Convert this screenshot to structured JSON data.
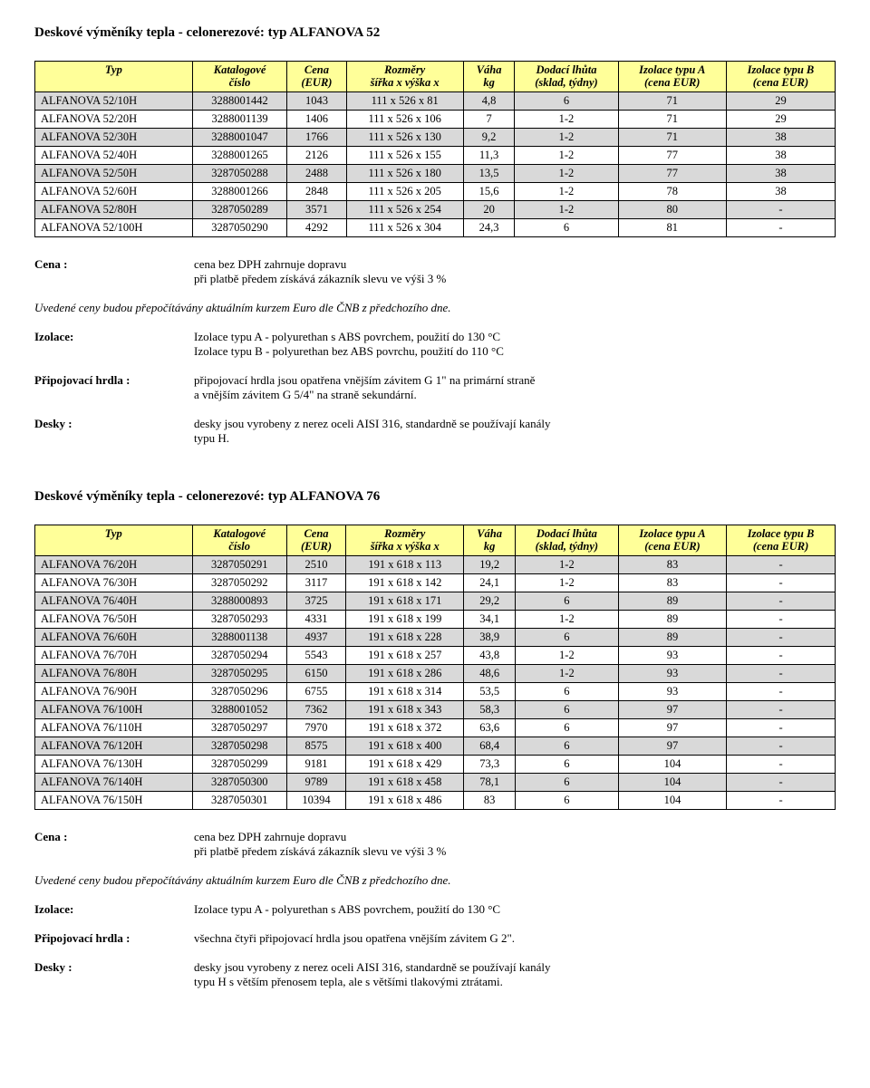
{
  "section1": {
    "title": "Deskové výměníky tepla - celonerezové: typ ALFANOVA 52",
    "columns": [
      {
        "l1": "Typ",
        "l2": ""
      },
      {
        "l1": "Katalogové",
        "l2": "číslo"
      },
      {
        "l1": "Cena",
        "l2": "(EUR)"
      },
      {
        "l1": "Rozměry",
        "l2": "šířka x výška x"
      },
      {
        "l1": "Váha",
        "l2": "kg"
      },
      {
        "l1": "Dodací lhůta",
        "l2": "(sklad, týdny)"
      },
      {
        "l1": "Izolace typu A",
        "l2": "(cena EUR)"
      },
      {
        "l1": "Izolace typu B",
        "l2": "(cena EUR)"
      }
    ],
    "rows": [
      {
        "shade": true,
        "c": [
          "ALFANOVA 52/10H",
          "3288001442",
          "1043",
          "111 x 526 x 81",
          "4,8",
          "6",
          "71",
          "29"
        ]
      },
      {
        "shade": false,
        "c": [
          "ALFANOVA 52/20H",
          "3288001139",
          "1406",
          "111 x 526 x 106",
          "7",
          "1-2",
          "71",
          "29"
        ]
      },
      {
        "shade": true,
        "c": [
          "ALFANOVA 52/30H",
          "3288001047",
          "1766",
          "111 x 526 x 130",
          "9,2",
          "1-2",
          "71",
          "38"
        ]
      },
      {
        "shade": false,
        "c": [
          "ALFANOVA 52/40H",
          "3288001265",
          "2126",
          "111 x 526 x 155",
          "11,3",
          "1-2",
          "77",
          "38"
        ]
      },
      {
        "shade": true,
        "c": [
          "ALFANOVA 52/50H",
          "3287050288",
          "2488",
          "111 x 526 x 180",
          "13,5",
          "1-2",
          "77",
          "38"
        ]
      },
      {
        "shade": false,
        "c": [
          "ALFANOVA 52/60H",
          "3288001266",
          "2848",
          "111 x 526 x 205",
          "15,6",
          "1-2",
          "78",
          "38"
        ]
      },
      {
        "shade": true,
        "c": [
          "ALFANOVA 52/80H",
          "3287050289",
          "3571",
          "111 x 526 x 254",
          "20",
          "1-2",
          "80",
          "-"
        ]
      },
      {
        "shade": false,
        "c": [
          "ALFANOVA 52/100H",
          "3287050290",
          "4292",
          "111 x 526 x 304",
          "24,3",
          "6",
          "81",
          "-"
        ]
      }
    ],
    "defs": {
      "cena_label": "Cena :",
      "cena_l1": "cena bez DPH zahrnuje dopravu",
      "cena_l2": "při platbě předem získává zákazník slevu ve výši 3 %",
      "cena_note": "Uvedené ceny budou přepočítávány aktuálním kurzem Euro dle ČNB z předchozího dne.",
      "izolace_label": "Izolace:",
      "izolace_l1": "Izolace typu A - polyurethan s ABS povrchem, použití do 130 °C",
      "izolace_l2": "Izolace typu B - polyurethan bez ABS povrchu, použití do 110 °C",
      "hrdla_label": "Připojovací hrdla :",
      "hrdla_l1": "připojovací hrdla jsou opatřena vnějším závitem G 1\" na primární straně",
      "hrdla_l2": "a vnějším závitem G 5/4\" na straně sekundární.",
      "desky_label": "Desky :",
      "desky_l1": "desky jsou vyrobeny z nerez oceli AISI 316, standardně se používají kanály",
      "desky_l2": "typu H."
    }
  },
  "section2": {
    "title": "Deskové výměníky tepla - celonerezové: typ ALFANOVA 76",
    "columns": [
      {
        "l1": "Typ",
        "l2": ""
      },
      {
        "l1": "Katalogové",
        "l2": "číslo"
      },
      {
        "l1": "Cena",
        "l2": "(EUR)"
      },
      {
        "l1": "Rozměry",
        "l2": "šířka x výška x"
      },
      {
        "l1": "Váha",
        "l2": "kg"
      },
      {
        "l1": "Dodací lhůta",
        "l2": "(sklad, týdny)"
      },
      {
        "l1": "Izolace typu A",
        "l2": "(cena EUR)"
      },
      {
        "l1": "Izolace typu B",
        "l2": "(cena EUR)"
      }
    ],
    "rows": [
      {
        "shade": true,
        "c": [
          "ALFANOVA 76/20H",
          "3287050291",
          "2510",
          "191 x 618 x 113",
          "19,2",
          "1-2",
          "83",
          "-"
        ]
      },
      {
        "shade": false,
        "c": [
          "ALFANOVA 76/30H",
          "3287050292",
          "3117",
          "191 x 618 x 142",
          "24,1",
          "1-2",
          "83",
          "-"
        ]
      },
      {
        "shade": true,
        "c": [
          "ALFANOVA 76/40H",
          "3288000893",
          "3725",
          "191 x 618 x 171",
          "29,2",
          "6",
          "89",
          "-"
        ]
      },
      {
        "shade": false,
        "c": [
          "ALFANOVA 76/50H",
          "3287050293",
          "4331",
          "191 x 618 x 199",
          "34,1",
          "1-2",
          "89",
          "-"
        ]
      },
      {
        "shade": true,
        "c": [
          "ALFANOVA 76/60H",
          "3288001138",
          "4937",
          "191 x 618 x 228",
          "38,9",
          "6",
          "89",
          "-"
        ]
      },
      {
        "shade": false,
        "c": [
          "ALFANOVA 76/70H",
          "3287050294",
          "5543",
          "191 x 618 x 257",
          "43,8",
          "1-2",
          "93",
          "-"
        ]
      },
      {
        "shade": true,
        "c": [
          "ALFANOVA 76/80H",
          "3287050295",
          "6150",
          "191 x 618 x 286",
          "48,6",
          "1-2",
          "93",
          "-"
        ]
      },
      {
        "shade": false,
        "c": [
          "ALFANOVA 76/90H",
          "3287050296",
          "6755",
          "191 x 618 x 314",
          "53,5",
          "6",
          "93",
          "-"
        ]
      },
      {
        "shade": true,
        "c": [
          "ALFANOVA 76/100H",
          "3288001052",
          "7362",
          "191 x 618 x 343",
          "58,3",
          "6",
          "97",
          "-"
        ]
      },
      {
        "shade": false,
        "c": [
          "ALFANOVA 76/110H",
          "3287050297",
          "7970",
          "191 x 618 x 372",
          "63,6",
          "6",
          "97",
          "-"
        ]
      },
      {
        "shade": true,
        "c": [
          "ALFANOVA 76/120H",
          "3287050298",
          "8575",
          "191 x 618 x 400",
          "68,4",
          "6",
          "97",
          "-"
        ]
      },
      {
        "shade": false,
        "c": [
          "ALFANOVA 76/130H",
          "3287050299",
          "9181",
          "191 x 618 x 429",
          "73,3",
          "6",
          "104",
          "-"
        ]
      },
      {
        "shade": true,
        "c": [
          "ALFANOVA 76/140H",
          "3287050300",
          "9789",
          "191 x 618 x 458",
          "78,1",
          "6",
          "104",
          "-"
        ]
      },
      {
        "shade": false,
        "c": [
          "ALFANOVA 76/150H",
          "3287050301",
          "10394",
          "191 x 618 x 486",
          "83",
          "6",
          "104",
          "-"
        ]
      }
    ],
    "defs": {
      "cena_label": "Cena :",
      "cena_l1": "cena bez DPH zahrnuje dopravu",
      "cena_l2": "při platbě předem získává zákazník slevu ve výši 3 %",
      "cena_note": "Uvedené ceny budou přepočítávány aktuálním kurzem Euro dle ČNB z předchozího dne.",
      "izolace_label": "Izolace:",
      "izolace_l1": "Izolace typu A - polyurethan s ABS povrchem, použití do 130 °C",
      "hrdla_label": "Připojovací hrdla :",
      "hrdla_l1": "všechna čtyři připojovací hrdla jsou opatřena vnějším závitem G 2\".",
      "desky_label": "Desky :",
      "desky_l1": "desky jsou vyrobeny z nerez oceli AISI 316, standardně se používají kanály",
      "desky_l2": "typu H s větším přenosem tepla, ale s většími tlakovými ztrátami."
    }
  }
}
